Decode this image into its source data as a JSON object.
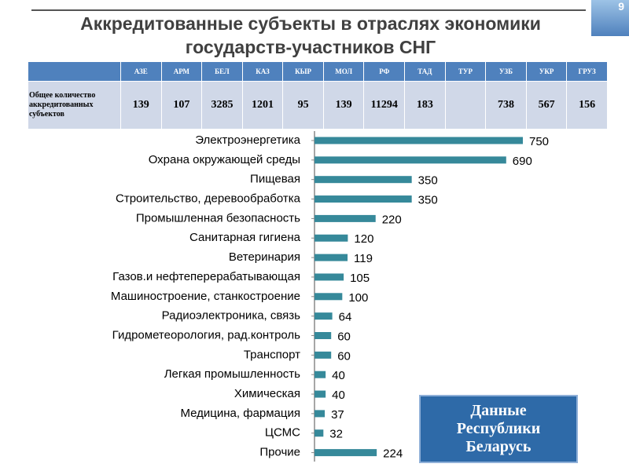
{
  "slide_number": "9",
  "title": [
    "Аккредитованные субъекты в отраслях экономики",
    "государств-участников СНГ"
  ],
  "table": {
    "columns": [
      "АЗЕ",
      "АРМ",
      "БЕЛ",
      "КАЗ",
      "КЫР",
      "МОЛ",
      "РФ",
      "ТАД",
      "ТУР",
      "УЗБ",
      "УКР",
      "ГРУЗ"
    ],
    "row_label": "Общее количество аккредитованных субъектов",
    "values": [
      139,
      107,
      3285,
      1201,
      95,
      139,
      11294,
      183,
      null,
      738,
      567,
      156
    ]
  },
  "note": "Данные Республики Беларусь",
  "chart_data": {
    "type": "hbar",
    "categories": [
      "Электроэнергетика",
      "Охрана окружающей среды",
      "Пищевая",
      "Строительство, деревообработка",
      "Промышленная безопасность",
      "Санитарная гигиена",
      "Ветеринария",
      "Газов.и нефтеперерабатывающая",
      "Машиностроение, станкостроение",
      "Радиоэлектроника, связь",
      "Гидрометеорология, рад.контроль",
      "Транспорт",
      "Легкая промышленность",
      "Химическая",
      "Медицина, фармация",
      "ЦСМС",
      "Прочие"
    ],
    "values": [
      750,
      690,
      350,
      350,
      220,
      120,
      119,
      105,
      100,
      64,
      60,
      60,
      40,
      40,
      37,
      32,
      224
    ],
    "color": "#36899a",
    "xlim": [
      0,
      750
    ]
  }
}
